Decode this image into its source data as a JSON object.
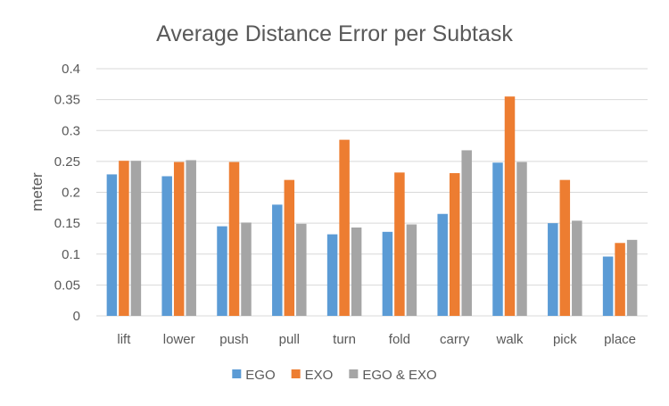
{
  "chart_data": {
    "type": "bar",
    "title": "Average Distance Error per Subtask",
    "xlabel": "",
    "ylabel": "meter",
    "ylim": [
      0,
      0.4
    ],
    "yticks": [
      "0",
      "0.05",
      "0.1",
      "0.15",
      "0.2",
      "0.25",
      "0.3",
      "0.35",
      "0.4"
    ],
    "grid": true,
    "legend_position": "bottom",
    "categories": [
      "lift",
      "lower",
      "push",
      "pull",
      "turn",
      "fold",
      "carry",
      "walk",
      "pick",
      "place"
    ],
    "series": [
      {
        "name": "EGO",
        "color": "#5b9bd5",
        "values": [
          0.229,
          0.226,
          0.145,
          0.18,
          0.132,
          0.136,
          0.165,
          0.248,
          0.15,
          0.096
        ]
      },
      {
        "name": "EXO",
        "color": "#ed7d31",
        "values": [
          0.251,
          0.249,
          0.249,
          0.22,
          0.285,
          0.232,
          0.231,
          0.355,
          0.22,
          0.118
        ]
      },
      {
        "name": "EGO & EXO",
        "color": "#a5a5a5",
        "values": [
          0.251,
          0.252,
          0.151,
          0.149,
          0.143,
          0.148,
          0.268,
          0.249,
          0.154,
          0.123
        ]
      }
    ]
  }
}
